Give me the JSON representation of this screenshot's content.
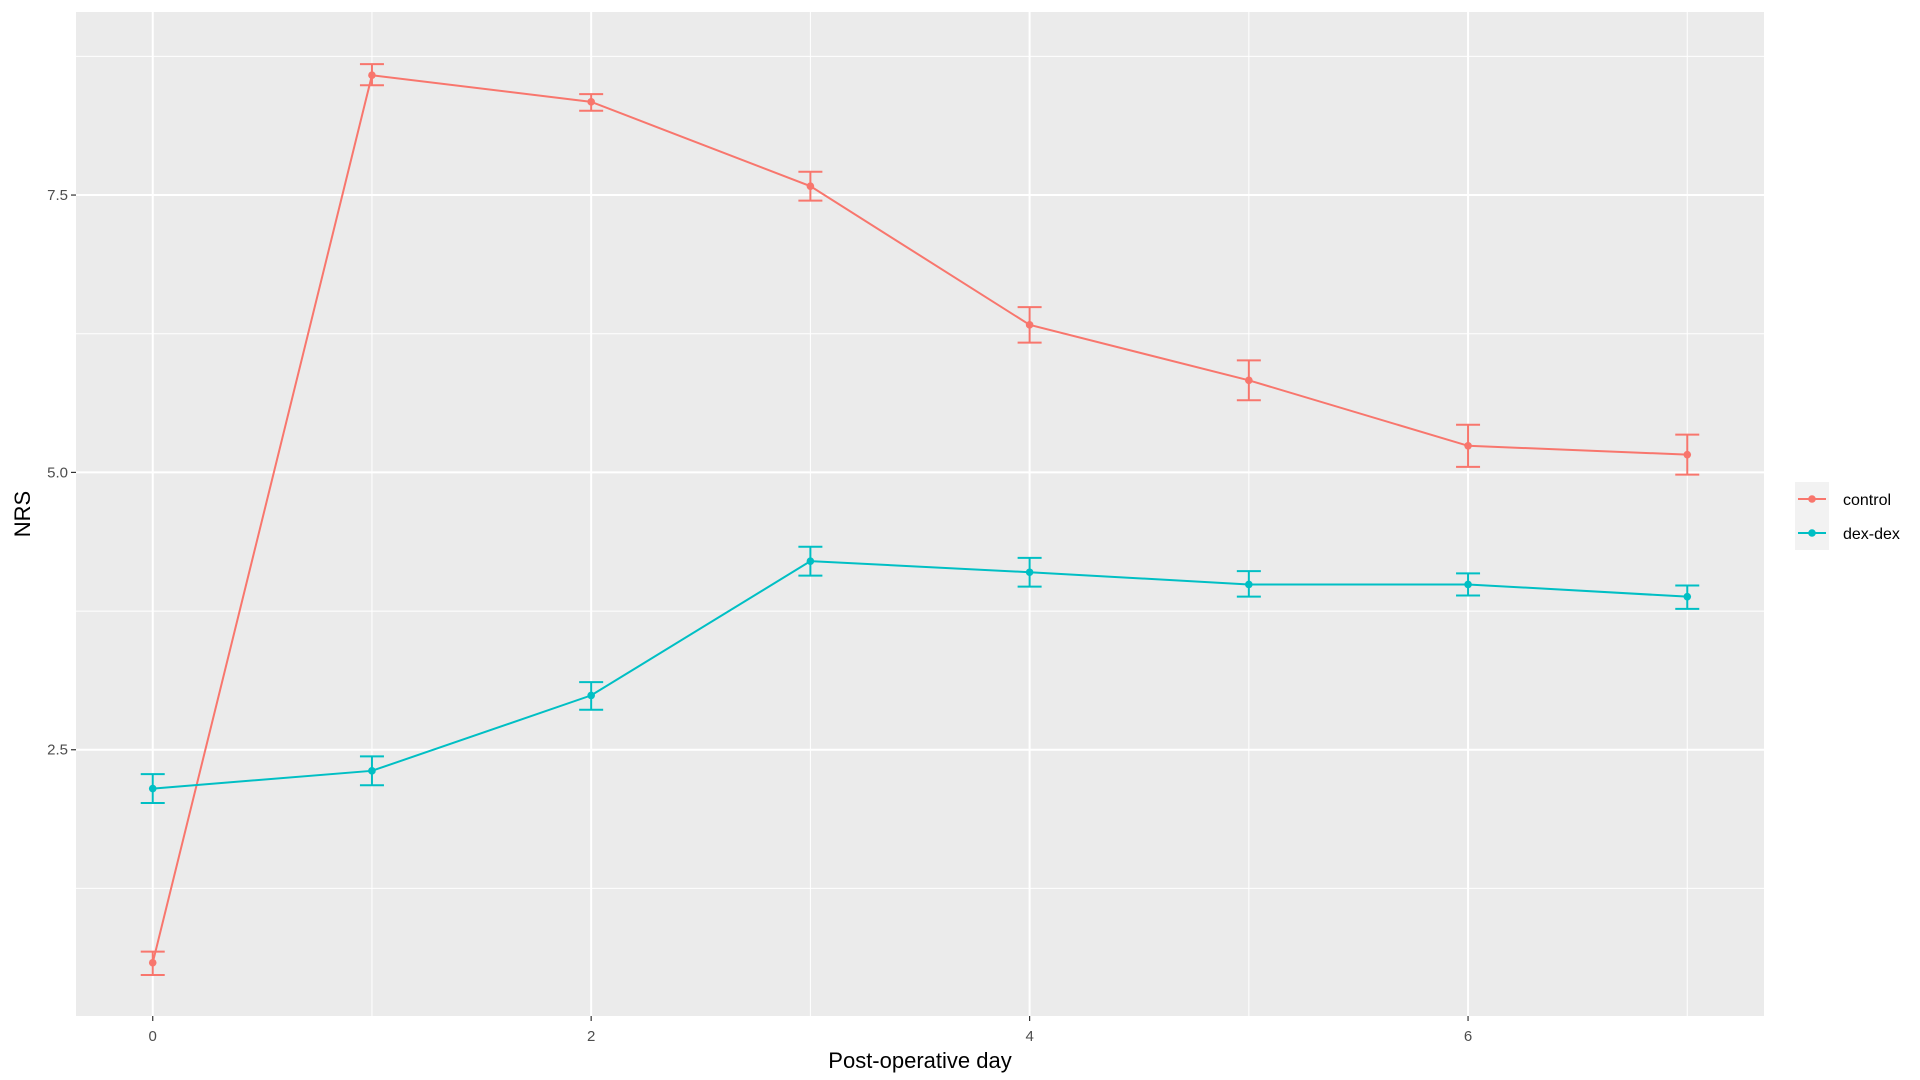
{
  "chart_data": {
    "type": "line",
    "xlabel": "Post-operative day",
    "ylabel": "NRS",
    "xlim": [
      -0.35,
      7.35
    ],
    "ylim": [
      0.1,
      9.15
    ],
    "x_ticks": [
      0,
      2,
      4,
      6
    ],
    "x_tick_labels": [
      "0",
      "2",
      "4",
      "6"
    ],
    "x_minor_ticks": [
      1,
      3,
      5,
      7
    ],
    "y_ticks": [
      2.5,
      5.0,
      7.5
    ],
    "y_tick_labels": [
      "2.5",
      "5.0",
      "7.5"
    ],
    "y_minor_ticks": [
      1.25,
      3.75,
      6.25,
      8.75
    ],
    "grid": true,
    "legend_position": "right",
    "x": [
      0,
      1,
      2,
      3,
      4,
      5,
      6,
      7
    ],
    "series": [
      {
        "name": "control",
        "color": "#F8766D",
        "values": [
          0.58,
          8.58,
          8.34,
          7.58,
          6.33,
          5.83,
          5.24,
          5.16
        ],
        "error_low": [
          0.47,
          8.49,
          8.26,
          7.45,
          6.17,
          5.65,
          5.05,
          4.98
        ],
        "error_high": [
          0.68,
          8.68,
          8.41,
          7.71,
          6.49,
          6.01,
          5.43,
          5.34
        ]
      },
      {
        "name": "dex-dex",
        "color": "#00BFC4",
        "values": [
          2.15,
          2.31,
          2.99,
          4.2,
          4.1,
          3.99,
          3.99,
          3.88
        ],
        "error_low": [
          2.02,
          2.18,
          2.86,
          4.07,
          3.97,
          3.88,
          3.89,
          3.77
        ],
        "error_high": [
          2.28,
          2.44,
          3.11,
          4.33,
          4.23,
          4.11,
          4.09,
          3.98
        ]
      }
    ]
  }
}
